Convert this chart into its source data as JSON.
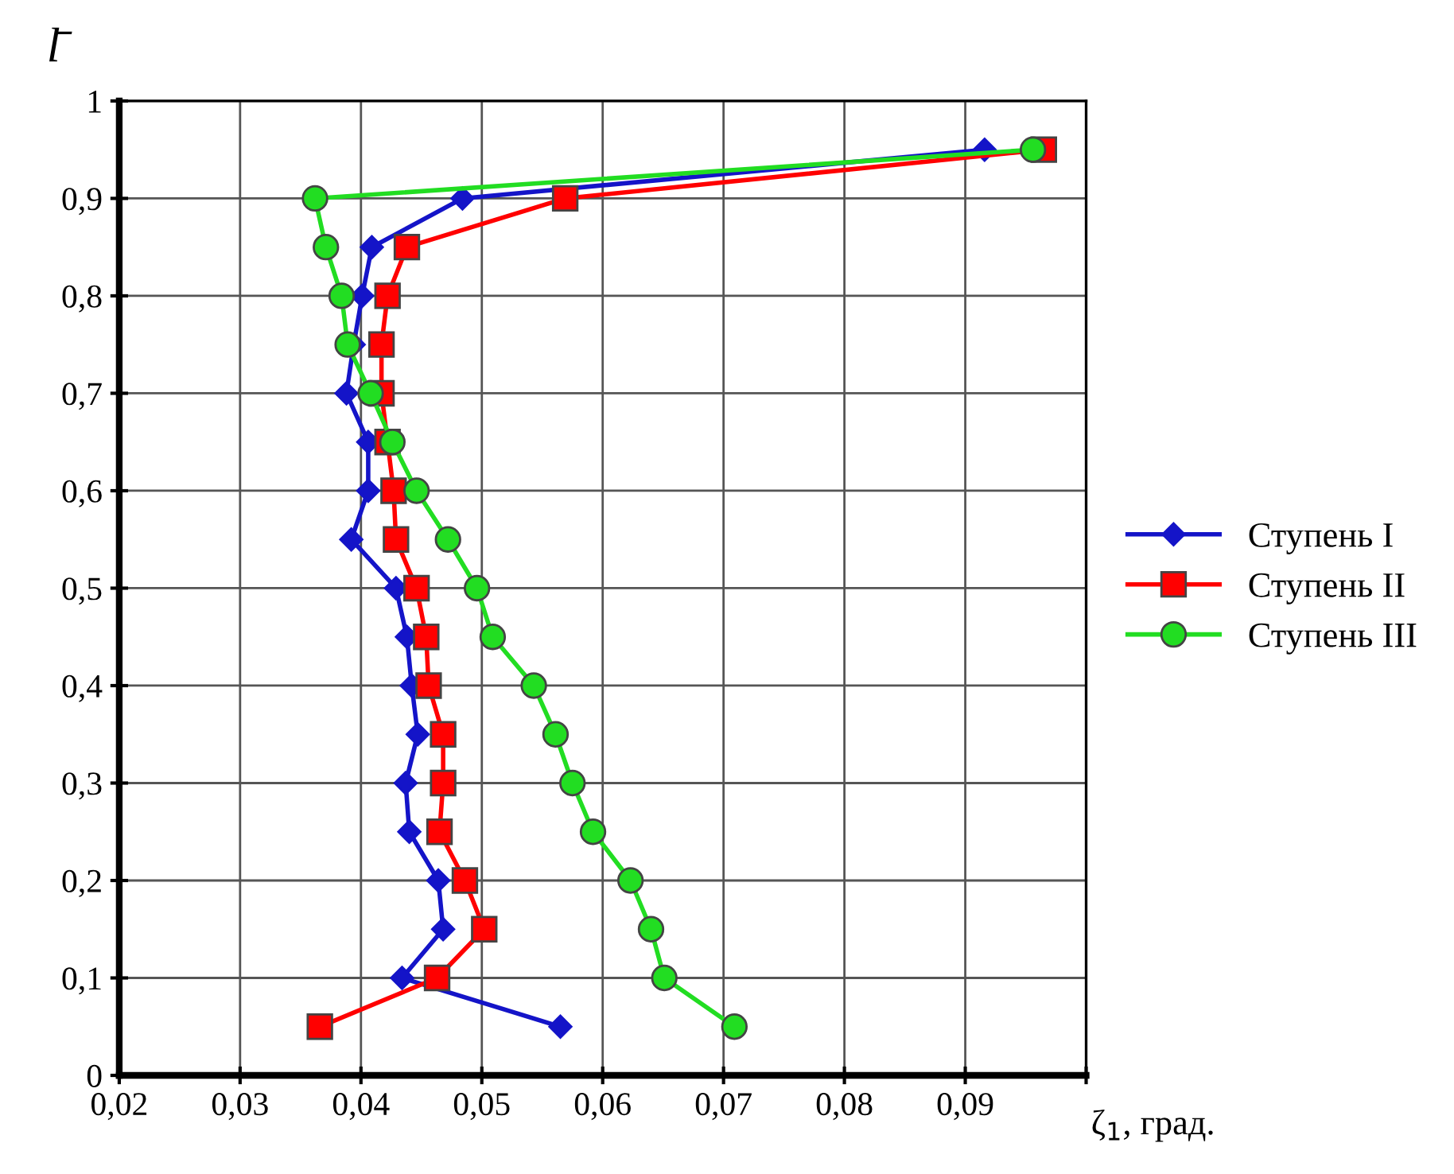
{
  "chart_data": {
    "type": "line",
    "xlabel": "ζ$_{1}$, град.",
    "ylabel": "l̄",
    "xlim": [
      0.02,
      0.1
    ],
    "ylim": [
      0,
      1
    ],
    "xticks": [
      {
        "value": 0.02,
        "label": "0,02"
      },
      {
        "value": 0.03,
        "label": "0,03"
      },
      {
        "value": 0.04,
        "label": "0,04"
      },
      {
        "value": 0.05,
        "label": "0,05"
      },
      {
        "value": 0.06,
        "label": "0,06"
      },
      {
        "value": 0.07,
        "label": "0,07"
      },
      {
        "value": 0.08,
        "label": "0,08"
      },
      {
        "value": 0.09,
        "label": "0,09"
      },
      {
        "value": 0.1,
        "label": null
      }
    ],
    "yticks": [
      0,
      {
        "value": 0.1,
        "label": "0,1"
      },
      {
        "value": 0.2,
        "label": "0,2"
      },
      {
        "value": 0.3,
        "label": "0,3"
      },
      {
        "value": 0.4,
        "label": "0,4"
      },
      {
        "value": 0.5,
        "label": "0,5"
      },
      {
        "value": 0.6,
        "label": "0,6"
      },
      {
        "value": 0.7,
        "label": "0,7"
      },
      {
        "value": 0.8,
        "label": "0,8"
      },
      {
        "value": 0.9,
        "label": "0,9"
      },
      1
    ],
    "grid": true,
    "legend": "right",
    "line_style": "solid",
    "series": [
      {
        "name": "Ступень I",
        "color": "#1414c8",
        "marker": "diamond",
        "x": [
          0.0565,
          0.0434,
          0.0468,
          0.0464,
          0.044,
          0.0437,
          0.0447,
          0.0442,
          0.0438,
          0.0429,
          0.0392,
          0.0406,
          0.0406,
          0.0388,
          0.0394,
          0.0401,
          0.0409,
          0.0484,
          0.0916
        ],
        "values": [
          0.05,
          0.1,
          0.15,
          0.2,
          0.25,
          0.3,
          0.35,
          0.4,
          0.45,
          0.5,
          0.55,
          0.6,
          0.65,
          0.7,
          0.75,
          0.8,
          0.85,
          0.9,
          0.95
        ]
      },
      {
        "name": "Ступень II",
        "color": "#ff0000",
        "marker": "square",
        "x": [
          0.0366,
          0.0463,
          0.0502,
          0.0486,
          0.0465,
          0.0468,
          0.0468,
          0.0456,
          0.0454,
          0.0446,
          0.0429,
          0.0427,
          0.0422,
          0.0417,
          0.0417,
          0.0422,
          0.0438,
          0.0569,
          0.0965
        ],
        "values": [
          0.05,
          0.1,
          0.15,
          0.2,
          0.25,
          0.3,
          0.35,
          0.4,
          0.45,
          0.5,
          0.55,
          0.6,
          0.65,
          0.7,
          0.75,
          0.8,
          0.85,
          0.9,
          0.95
        ]
      },
      {
        "name": "Ступень III",
        "color": "#22dd22",
        "marker": "circle",
        "x": [
          0.0709,
          0.0651,
          0.064,
          0.0623,
          0.0592,
          0.0575,
          0.0561,
          0.0543,
          0.0509,
          0.0496,
          0.0472,
          0.0446,
          0.0426,
          0.0408,
          0.0389,
          0.0384,
          0.0371,
          0.0362,
          0.0956
        ],
        "values": [
          0.05,
          0.1,
          0.15,
          0.2,
          0.25,
          0.3,
          0.35,
          0.4,
          0.45,
          0.5,
          0.55,
          0.6,
          0.65,
          0.7,
          0.75,
          0.8,
          0.85,
          0.9,
          0.95
        ]
      }
    ]
  }
}
